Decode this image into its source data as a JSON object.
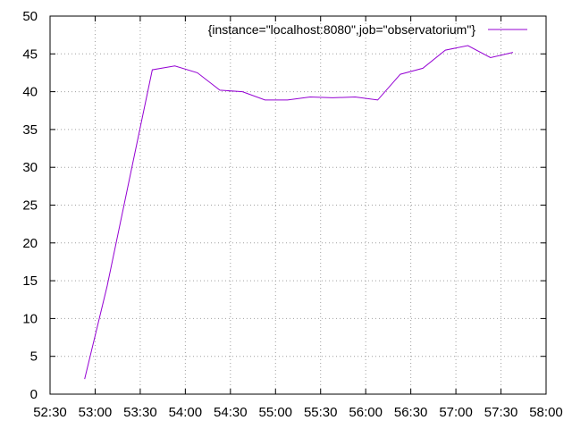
{
  "chart_data": {
    "type": "line",
    "title": "",
    "xlabel": "",
    "ylabel": "",
    "xlim": [
      "52:30",
      "58:00"
    ],
    "ylim": [
      0,
      50
    ],
    "x_ticks": [
      "52:30",
      "53:00",
      "53:30",
      "54:00",
      "54:30",
      "55:00",
      "55:30",
      "56:00",
      "56:30",
      "57:00",
      "57:30",
      "58:00"
    ],
    "y_ticks": [
      "0",
      "5",
      "10",
      "15",
      "20",
      "25",
      "30",
      "35",
      "40",
      "45",
      "50"
    ],
    "grid": true,
    "legend_position": "top-right",
    "series": [
      {
        "name": "{instance=\"localhost:8080\",job=\"observatorium\"}",
        "color": "#9400d3",
        "x": [
          "52:53",
          "53:08",
          "53:23",
          "53:38",
          "53:53",
          "54:08",
          "54:23",
          "54:38",
          "54:53",
          "55:08",
          "55:23",
          "55:38",
          "55:53",
          "56:08",
          "56:23",
          "56:38",
          "56:53",
          "57:08",
          "57:23",
          "57:38"
        ],
        "values": [
          2,
          14.3,
          28.6,
          42.9,
          43.4,
          42.5,
          40.2,
          40.0,
          38.9,
          38.9,
          39.3,
          39.2,
          39.3,
          38.9,
          42.3,
          43.1,
          45.5,
          46.1,
          44.5,
          45.2
        ]
      }
    ]
  }
}
